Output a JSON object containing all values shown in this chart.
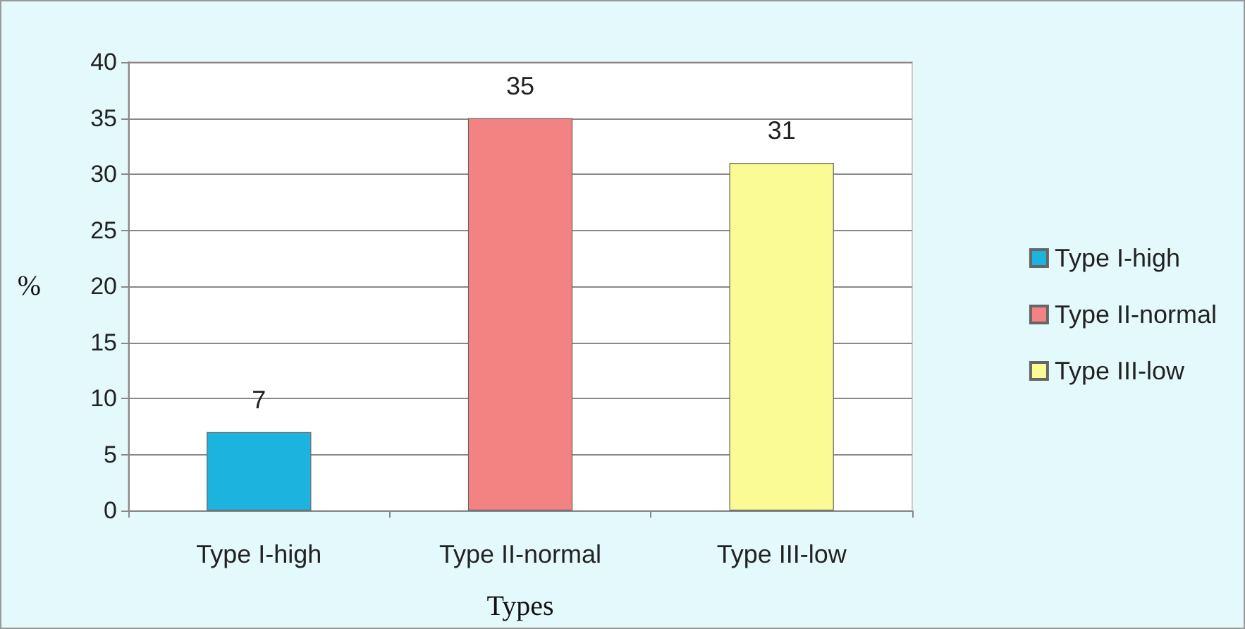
{
  "chart_data": {
    "type": "bar",
    "xlabel": "Types",
    "ylabel": "%",
    "categories": [
      "Type I-high",
      "Type II-normal",
      "Type III-low"
    ],
    "series": [
      {
        "name": "Type I-high",
        "color": "#1cb4df",
        "values": [
          7,
          null,
          null
        ]
      },
      {
        "name": "Type II-normal",
        "color": "#f38283",
        "values": [
          null,
          35,
          null
        ]
      },
      {
        "name": "Type III-low",
        "color": "#fbfb96",
        "values": [
          null,
          null,
          31
        ]
      }
    ],
    "ylim": [
      0,
      40
    ],
    "yticks": [
      0,
      5,
      10,
      15,
      20,
      25,
      30,
      35,
      40
    ],
    "grid": "y",
    "legend": "right",
    "data_labels": true
  }
}
